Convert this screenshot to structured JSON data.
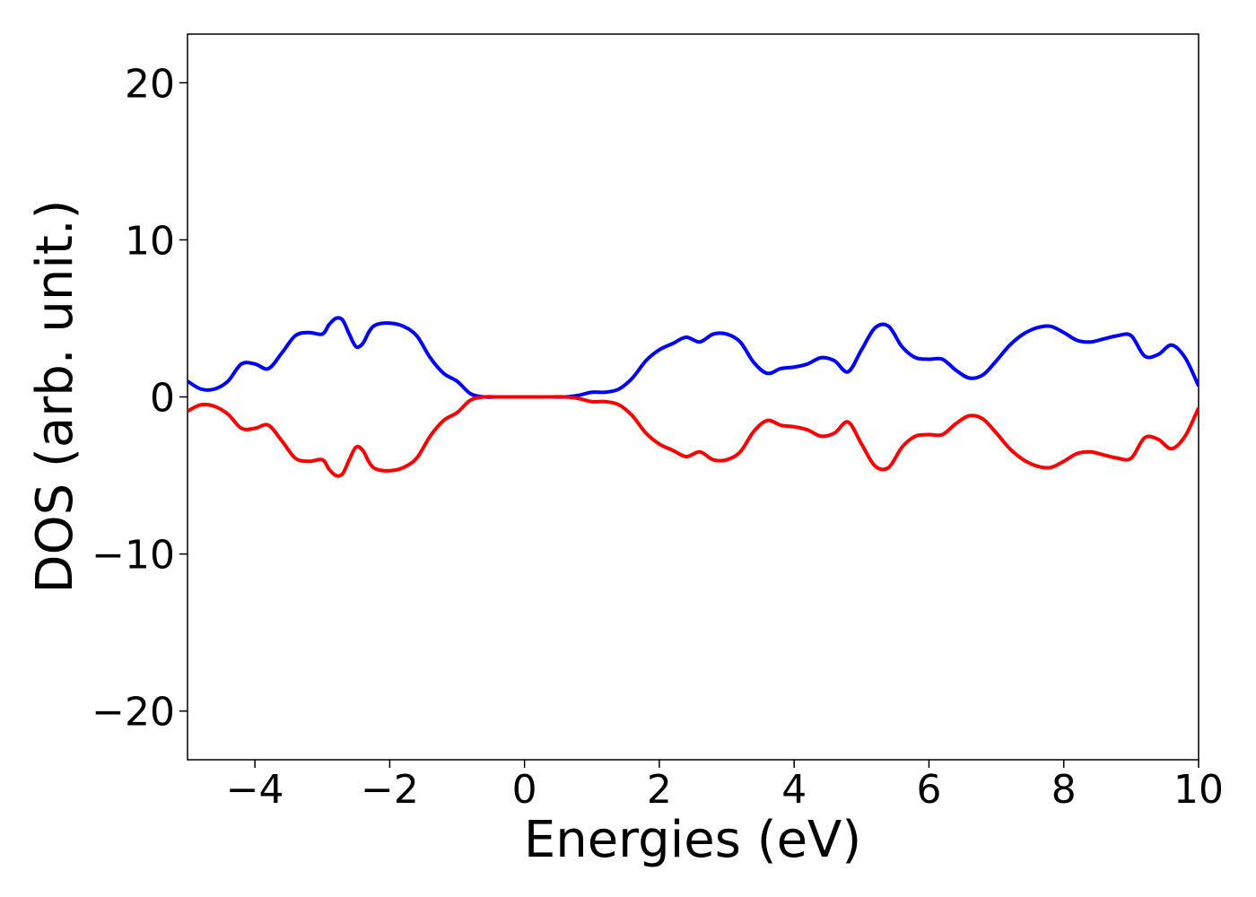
{
  "chart_data": {
    "type": "line",
    "title": "",
    "xlabel": "Energies (eV)",
    "ylabel": "DOS (arb. unit.)",
    "xlim": [
      -5,
      10
    ],
    "ylim": [
      -23.1,
      23.1
    ],
    "xticks": [
      -4,
      -2,
      0,
      2,
      4,
      6,
      8,
      10
    ],
    "xtick_labels": [
      "−4",
      "−2",
      "0",
      "2",
      "4",
      "6",
      "8",
      "10"
    ],
    "yticks": [
      -20,
      -10,
      0,
      10,
      20
    ],
    "ytick_labels": [
      "−20",
      "−10",
      "0",
      "10",
      "20"
    ],
    "grid": false,
    "legend": "none",
    "series": [
      {
        "color": "#0000ff",
        "x": [
          -5.0,
          -4.8,
          -4.6,
          -4.4,
          -4.2,
          -4.0,
          -3.8,
          -3.6,
          -3.4,
          -3.2,
          -3.0,
          -2.9,
          -2.8,
          -2.7,
          -2.6,
          -2.5,
          -2.4,
          -2.3,
          -2.2,
          -2.0,
          -1.8,
          -1.6,
          -1.4,
          -1.2,
          -1.0,
          -0.8,
          -0.6,
          -0.4,
          -0.2,
          0.0,
          0.2,
          0.4,
          0.6,
          0.8,
          1.0,
          1.2,
          1.4,
          1.6,
          1.8,
          2.0,
          2.2,
          2.4,
          2.6,
          2.8,
          3.0,
          3.2,
          3.4,
          3.6,
          3.8,
          4.0,
          4.2,
          4.4,
          4.6,
          4.8,
          5.0,
          5.2,
          5.4,
          5.6,
          5.8,
          6.0,
          6.2,
          6.4,
          6.6,
          6.8,
          7.0,
          7.2,
          7.4,
          7.6,
          7.8,
          8.0,
          8.2,
          8.4,
          8.6,
          8.8,
          9.0,
          9.2,
          9.4,
          9.6,
          9.8,
          10.0
        ],
        "y": [
          1.0,
          0.5,
          0.5,
          1.0,
          2.1,
          2.1,
          1.8,
          2.8,
          3.9,
          4.1,
          4.0,
          4.6,
          5.0,
          4.9,
          4.0,
          3.2,
          3.4,
          4.2,
          4.6,
          4.7,
          4.5,
          3.9,
          2.5,
          1.5,
          1.0,
          0.2,
          0.0,
          0.0,
          0.0,
          0.0,
          0.0,
          0.0,
          0.0,
          0.1,
          0.3,
          0.3,
          0.5,
          1.2,
          2.3,
          3.0,
          3.4,
          3.8,
          3.5,
          4.0,
          4.0,
          3.5,
          2.2,
          1.5,
          1.8,
          1.9,
          2.1,
          2.5,
          2.3,
          1.6,
          3.0,
          4.4,
          4.5,
          3.2,
          2.5,
          2.4,
          2.4,
          1.7,
          1.2,
          1.4,
          2.3,
          3.3,
          4.0,
          4.4,
          4.5,
          4.1,
          3.6,
          3.5,
          3.7,
          3.9,
          3.9,
          2.6,
          2.7,
          3.3,
          2.5,
          0.7
        ]
      },
      {
        "color": "#ff0000",
        "x": [
          -5.0,
          -4.8,
          -4.6,
          -4.4,
          -4.2,
          -4.0,
          -3.8,
          -3.6,
          -3.4,
          -3.2,
          -3.0,
          -2.9,
          -2.8,
          -2.7,
          -2.6,
          -2.5,
          -2.4,
          -2.3,
          -2.2,
          -2.0,
          -1.8,
          -1.6,
          -1.4,
          -1.2,
          -1.0,
          -0.8,
          -0.6,
          -0.4,
          -0.2,
          0.0,
          0.2,
          0.4,
          0.6,
          0.8,
          1.0,
          1.2,
          1.4,
          1.6,
          1.8,
          2.0,
          2.2,
          2.4,
          2.6,
          2.8,
          3.0,
          3.2,
          3.4,
          3.6,
          3.8,
          4.0,
          4.2,
          4.4,
          4.6,
          4.8,
          5.0,
          5.2,
          5.4,
          5.6,
          5.8,
          6.0,
          6.2,
          6.4,
          6.6,
          6.8,
          7.0,
          7.2,
          7.4,
          7.6,
          7.8,
          8.0,
          8.2,
          8.4,
          8.6,
          8.8,
          9.0,
          9.2,
          9.4,
          9.6,
          9.8,
          10.0
        ],
        "y": [
          -0.9,
          -0.5,
          -0.6,
          -1.1,
          -2.0,
          -2.0,
          -1.8,
          -2.8,
          -3.9,
          -4.1,
          -4.0,
          -4.6,
          -5.0,
          -4.9,
          -4.0,
          -3.2,
          -3.4,
          -4.2,
          -4.6,
          -4.7,
          -4.5,
          -3.9,
          -2.5,
          -1.5,
          -1.0,
          -0.2,
          0.0,
          0.0,
          0.0,
          0.0,
          0.0,
          0.0,
          0.0,
          -0.1,
          -0.3,
          -0.3,
          -0.5,
          -1.2,
          -2.3,
          -3.0,
          -3.4,
          -3.8,
          -3.5,
          -4.0,
          -4.0,
          -3.5,
          -2.2,
          -1.5,
          -1.8,
          -1.9,
          -2.1,
          -2.5,
          -2.3,
          -1.6,
          -3.0,
          -4.4,
          -4.5,
          -3.2,
          -2.5,
          -2.4,
          -2.4,
          -1.7,
          -1.2,
          -1.4,
          -2.3,
          -3.3,
          -4.0,
          -4.4,
          -4.5,
          -4.1,
          -3.6,
          -3.5,
          -3.7,
          -3.9,
          -3.9,
          -2.6,
          -2.7,
          -3.3,
          -2.5,
          -0.7
        ]
      }
    ]
  }
}
